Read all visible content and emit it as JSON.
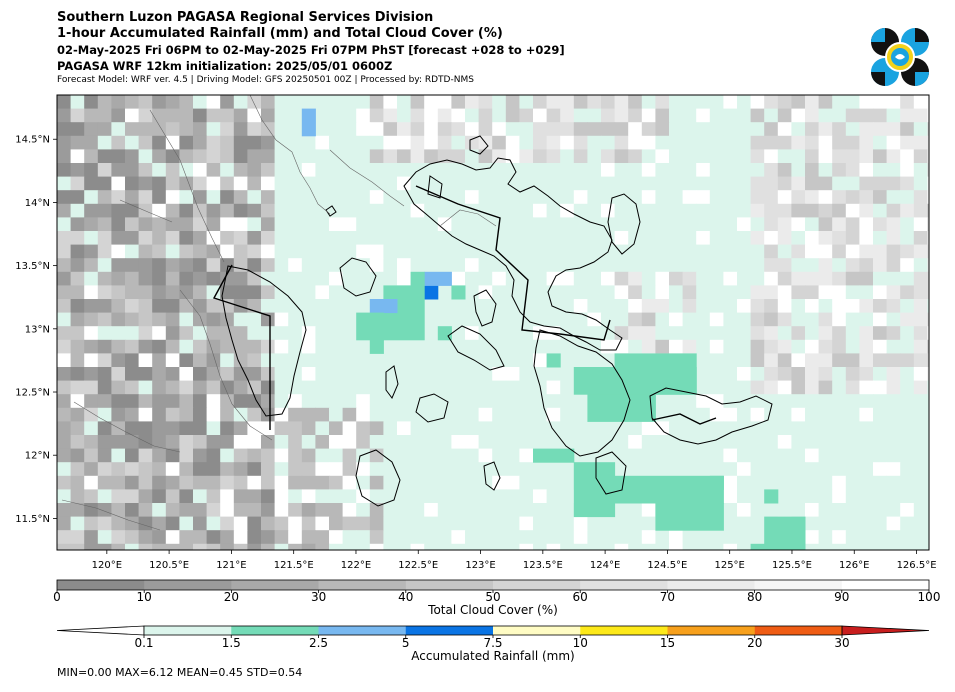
{
  "header": {
    "line1": "Southern Luzon PAGASA Regional Services Division",
    "line2": "1-hour Accumulated Rainfall (mm) and Total Cloud Cover (%)",
    "line3": "02-May-2025 Fri 06PM to 02-May-2025 Fri 07PM PhST [forecast +028 to +029]",
    "line4": "PAGASA WRF 12km initialization: 2025/05/01 0600Z",
    "line5": "Forecast Model: WRF ver. 4.5 | Driving Model: GFS 20250501 00Z | Processed by: RDTD-NMS"
  },
  "logo": {
    "icon": "pagasa-logo-icon",
    "colors": [
      "#111111",
      "#1aa3e0",
      "#f2d21b"
    ]
  },
  "map": {
    "lon_range": [
      119.6,
      126.6
    ],
    "lat_range": [
      11.25,
      14.85
    ],
    "lon_ticks": [
      "120°E",
      "120.5°E",
      "121°E",
      "121.5°E",
      "122°E",
      "122.5°E",
      "123°E",
      "123.5°E",
      "124°E",
      "124.5°E",
      "125°E",
      "125.5°E",
      "126°E",
      "126.5°E"
    ],
    "lat_ticks": [
      "14.5°N",
      "14°N",
      "13.5°N",
      "13°N",
      "12.5°N",
      "12°N",
      "11.5°N"
    ]
  },
  "cloud_colorbar": {
    "title": "Total Cloud Cover (%)",
    "labels": [
      "0",
      "10",
      "20",
      "30",
      "40",
      "50",
      "60",
      "70",
      "80",
      "90",
      "100"
    ],
    "colors": [
      "#8c8c8c",
      "#9b9b9b",
      "#a9a9a9",
      "#b8b8b8",
      "#c6c6c6",
      "#d4d4d4",
      "#e0e0e0",
      "#ebebeb",
      "#f5f5f5",
      "#ffffff"
    ]
  },
  "rain_colorbar": {
    "title": "Accumulated Rainfall (mm)",
    "labels": [
      "0.1",
      "1.5",
      "2.5",
      "5",
      "7.5",
      "10",
      "15",
      "20",
      "30"
    ],
    "colors": [
      "#dcf5ec",
      "#74dbb7",
      "#78b8f0",
      "#0a74e4",
      "#fffcc4",
      "#fde91a",
      "#f7a01c",
      "#ef5c14",
      "#c81e1e"
    ]
  },
  "stats": {
    "text": "MIN=0.00   MAX=6.12   MEAN=0.45   STD=0.54"
  }
}
